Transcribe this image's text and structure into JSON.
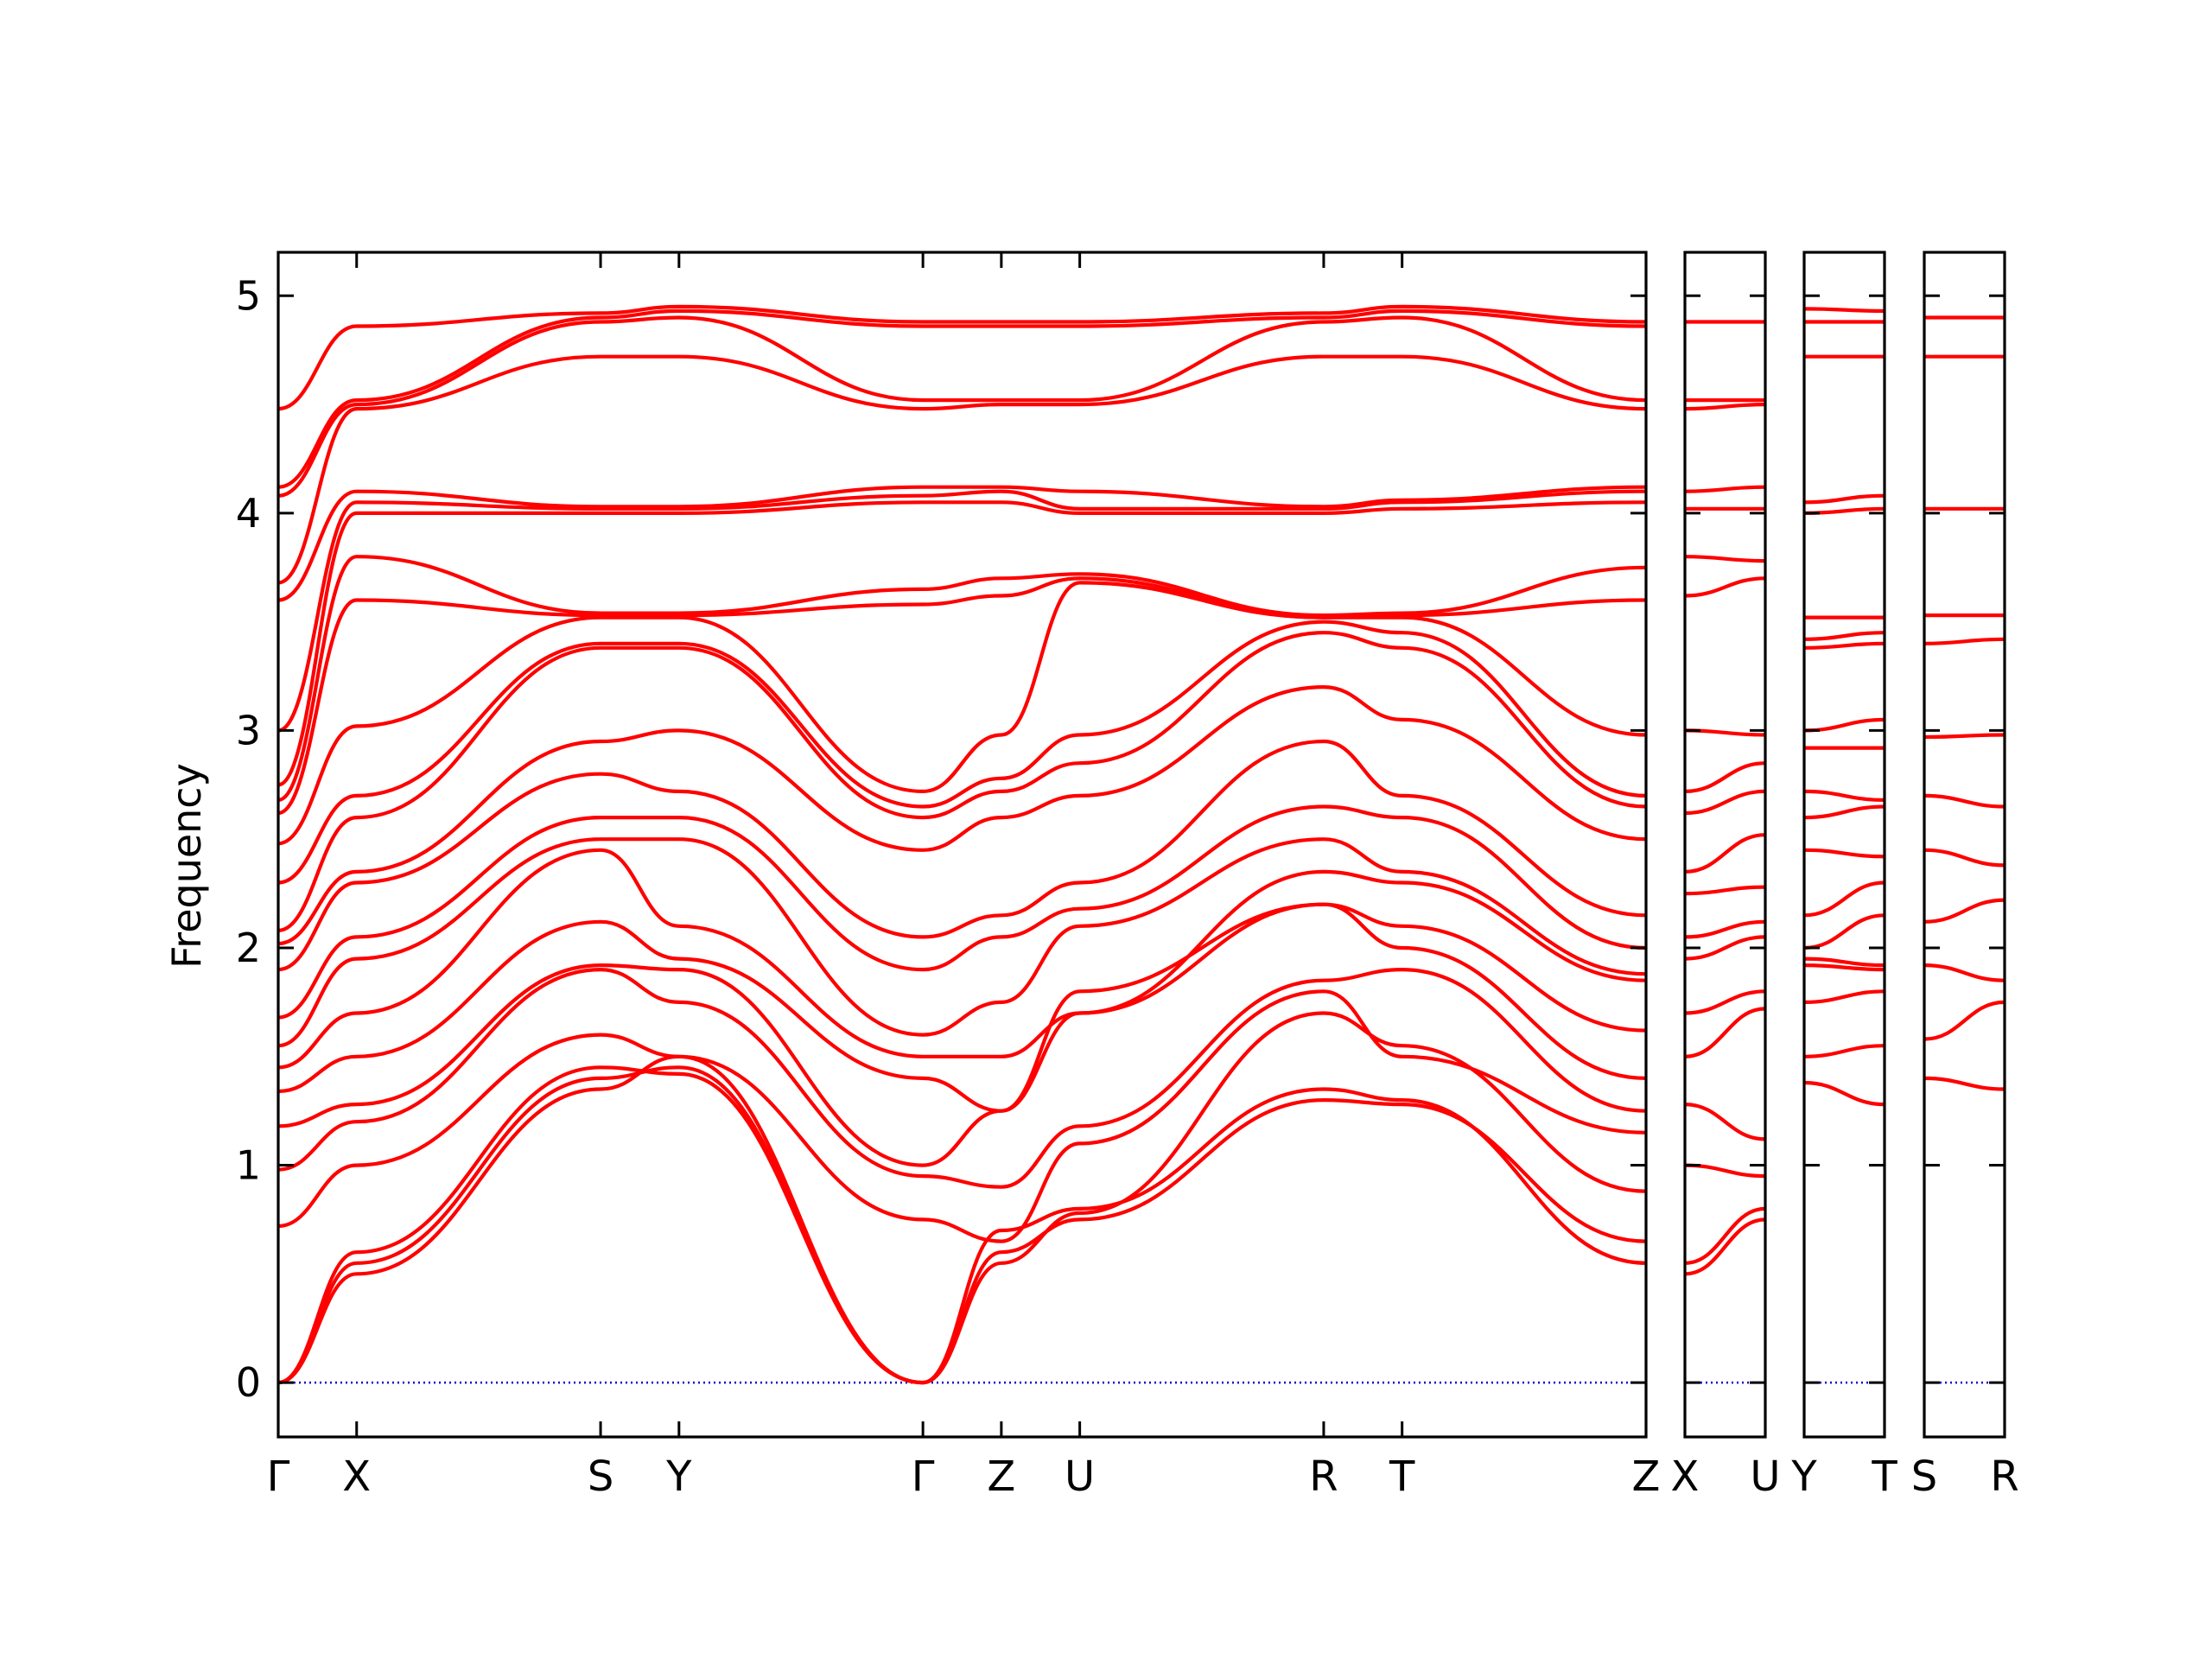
{
  "chart_data": {
    "type": "line",
    "title": "",
    "xlabel": "",
    "ylabel": "Frequency",
    "ylim": [
      -0.25,
      5.2
    ],
    "grid": false,
    "legend": "none",
    "line_color": "#ff0000",
    "zero_line_color": "#0000cc",
    "yticks": [
      0,
      1,
      2,
      3,
      4,
      5
    ],
    "yticks_labels": [
      "0",
      "1",
      "2",
      "3",
      "4",
      "5"
    ],
    "panels": [
      {
        "id": "main",
        "labels": [
          "Γ",
          "X",
          "S",
          "Y",
          "Γ",
          "Z",
          "U",
          "R",
          "T",
          "Z"
        ],
        "segment_lengths": [
          0.18,
          0.56,
          0.18,
          0.56,
          0.18,
          0.18,
          0.56,
          0.18,
          0.56
        ],
        "bands": [
          {
            "name": "",
            "values": [
              0,
              0.5,
              1.35,
              1.5,
              0,
              0.7,
              0.8,
              1.35,
              1.3,
              0.55
            ]
          },
          {
            "name": "",
            "values": [
              0,
              0.55,
              1.4,
              1.45,
              0,
              0.6,
              0.75,
              1.3,
              1.28,
              0.65
            ]
          },
          {
            "name": "",
            "values": [
              0,
              0.6,
              1.45,
              1.42,
              0,
              0.55,
              0.78,
              1.7,
              1.55,
              0.88
            ]
          },
          {
            "name": "",
            "values": [
              0.72,
              1.0,
              1.6,
              1.5,
              0.75,
              0.65,
              1.1,
              1.8,
              1.5,
              1.15
            ]
          },
          {
            "name": "",
            "values": [
              0.98,
              1.2,
              1.9,
              1.75,
              0.95,
              0.9,
              1.18,
              1.85,
              1.9,
              1.25
            ]
          },
          {
            "name": "",
            "values": [
              1.18,
              1.28,
              1.92,
              1.9,
              1.0,
              1.25,
              1.7,
              2.2,
              2.0,
              1.4
            ]
          },
          {
            "name": "",
            "values": [
              1.34,
              1.5,
              2.12,
              1.95,
              1.4,
              1.25,
              1.8,
              2.2,
              2.1,
              1.62
            ]
          },
          {
            "name": "",
            "values": [
              1.45,
              1.7,
              2.45,
              2.1,
              1.5,
              1.5,
              1.7,
              2.35,
              2.3,
              1.85
            ]
          },
          {
            "name": "",
            "values": [
              1.55,
              1.95,
              2.5,
              2.5,
              1.6,
              1.75,
              2.1,
              2.5,
              2.35,
              1.88
            ]
          },
          {
            "name": "",
            "values": [
              1.68,
              2.05,
              2.6,
              2.6,
              1.9,
              2.05,
              2.18,
              2.65,
              2.6,
              2.0
            ]
          },
          {
            "name": "",
            "values": [
              1.9,
              2.3,
              2.8,
              2.72,
              2.05,
              2.15,
              2.3,
              2.95,
              2.7,
              2.15
            ]
          },
          {
            "name": "",
            "values": [
              2.02,
              2.35,
              2.95,
              3.0,
              2.45,
              2.6,
              2.7,
              3.2,
              3.05,
              2.5
            ]
          },
          {
            "name": "",
            "values": [
              2.08,
              2.6,
              3.38,
              3.38,
              2.6,
              2.72,
              2.85,
              3.45,
              3.38,
              2.65
            ]
          },
          {
            "name": "",
            "values": [
              2.3,
              2.7,
              3.4,
              3.4,
              2.65,
              2.78,
              2.98,
              3.5,
              3.45,
              2.7
            ]
          },
          {
            "name": "",
            "values": [
              2.48,
              3.02,
              3.52,
              3.52,
              2.72,
              2.98,
              3.68,
              3.52,
              3.52,
              2.98
            ]
          },
          {
            "name": "",
            "values": [
              2.62,
              3.6,
              3.53,
              3.53,
              3.58,
              3.62,
              3.7,
              3.52,
              3.53,
              3.6
            ]
          },
          {
            "name": "",
            "values": [
              2.68,
              3.8,
              3.54,
              3.54,
              3.65,
              3.7,
              3.72,
              3.53,
              3.54,
              3.75
            ]
          },
          {
            "name": "",
            "values": [
              2.75,
              4.0,
              4.0,
              4.0,
              4.05,
              4.05,
              4.0,
              4.0,
              4.02,
              4.05
            ]
          },
          {
            "name": "",
            "values": [
              3.0,
              4.05,
              4.02,
              4.02,
              4.08,
              4.1,
              4.02,
              4.02,
              4.05,
              4.1
            ]
          },
          {
            "name": "",
            "values": [
              3.6,
              4.1,
              4.03,
              4.03,
              4.12,
              4.12,
              4.1,
              4.03,
              4.06,
              4.12
            ]
          },
          {
            "name": "",
            "values": [
              3.68,
              4.48,
              4.72,
              4.72,
              4.48,
              4.5,
              4.5,
              4.72,
              4.72,
              4.48
            ]
          },
          {
            "name": "",
            "values": [
              4.08,
              4.5,
              4.88,
              4.9,
              4.52,
              4.52,
              4.52,
              4.88,
              4.9,
              4.52
            ]
          },
          {
            "name": "",
            "values": [
              4.12,
              4.52,
              4.9,
              4.93,
              4.86,
              4.86,
              4.86,
              4.9,
              4.93,
              4.86
            ]
          },
          {
            "name": "",
            "values": [
              4.48,
              4.86,
              4.92,
              4.95,
              4.88,
              4.88,
              4.88,
              4.92,
              4.95,
              4.88
            ]
          }
        ]
      },
      {
        "id": "xu",
        "labels": [
          "X",
          "U"
        ],
        "segment_lengths": [
          1
        ],
        "bands": [
          {
            "name": "",
            "values": [
              0.5,
              0.75
            ]
          },
          {
            "name": "",
            "values": [
              0.55,
              0.8
            ]
          },
          {
            "name": "",
            "values": [
              1.0,
              0.95
            ]
          },
          {
            "name": "",
            "values": [
              1.28,
              1.12
            ]
          },
          {
            "name": "",
            "values": [
              1.5,
              1.72
            ]
          },
          {
            "name": "",
            "values": [
              1.7,
              1.8
            ]
          },
          {
            "name": "",
            "values": [
              1.95,
              2.05
            ]
          },
          {
            "name": "",
            "values": [
              2.05,
              2.12
            ]
          },
          {
            "name": "",
            "values": [
              2.25,
              2.28
            ]
          },
          {
            "name": "",
            "values": [
              2.35,
              2.52
            ]
          },
          {
            "name": "",
            "values": [
              2.62,
              2.72
            ]
          },
          {
            "name": "",
            "values": [
              2.72,
              2.85
            ]
          },
          {
            "name": "",
            "values": [
              3.0,
              2.98
            ]
          },
          {
            "name": "",
            "values": [
              3.62,
              3.7
            ]
          },
          {
            "name": "",
            "values": [
              3.8,
              3.78
            ]
          },
          {
            "name": "",
            "values": [
              4.02,
              4.02
            ]
          },
          {
            "name": "",
            "values": [
              4.1,
              4.12
            ]
          },
          {
            "name": "",
            "values": [
              4.48,
              4.5
            ]
          },
          {
            "name": "",
            "values": [
              4.52,
              4.52
            ]
          },
          {
            "name": "",
            "values": [
              4.88,
              4.88
            ]
          }
        ]
      },
      {
        "id": "yt",
        "labels": [
          "Y",
          "T"
        ],
        "segment_lengths": [
          1
        ],
        "bands": [
          {
            "name": "",
            "values": [
              1.38,
              1.28
            ]
          },
          {
            "name": "",
            "values": [
              1.5,
              1.55
            ]
          },
          {
            "name": "",
            "values": [
              1.75,
              1.8
            ]
          },
          {
            "name": "",
            "values": [
              1.92,
              1.9
            ]
          },
          {
            "name": "",
            "values": [
              1.95,
              1.92
            ]
          },
          {
            "name": "",
            "values": [
              2.0,
              2.15
            ]
          },
          {
            "name": "",
            "values": [
              2.15,
              2.3
            ]
          },
          {
            "name": "",
            "values": [
              2.45,
              2.42
            ]
          },
          {
            "name": "",
            "values": [
              2.6,
              2.65
            ]
          },
          {
            "name": "",
            "values": [
              2.72,
              2.68
            ]
          },
          {
            "name": "",
            "values": [
              2.92,
              2.92
            ]
          },
          {
            "name": "",
            "values": [
              3.0,
              3.05
            ]
          },
          {
            "name": "",
            "values": [
              3.38,
              3.4
            ]
          },
          {
            "name": "",
            "values": [
              3.42,
              3.45
            ]
          },
          {
            "name": "",
            "values": [
              3.52,
              3.52
            ]
          },
          {
            "name": "",
            "values": [
              4.0,
              4.02
            ]
          },
          {
            "name": "",
            "values": [
              4.05,
              4.08
            ]
          },
          {
            "name": "",
            "values": [
              4.72,
              4.72
            ]
          },
          {
            "name": "",
            "values": [
              4.88,
              4.88
            ]
          },
          {
            "name": "",
            "values": [
              4.94,
              4.93
            ]
          }
        ]
      },
      {
        "id": "sr",
        "labels": [
          "S",
          "R"
        ],
        "segment_lengths": [
          1
        ],
        "bands": [
          {
            "name": "",
            "values": [
              1.4,
              1.35
            ]
          },
          {
            "name": "",
            "values": [
              1.58,
              1.75
            ]
          },
          {
            "name": "",
            "values": [
              1.92,
              1.85
            ]
          },
          {
            "name": "",
            "values": [
              2.12,
              2.22
            ]
          },
          {
            "name": "",
            "values": [
              2.45,
              2.38
            ]
          },
          {
            "name": "",
            "values": [
              2.7,
              2.65
            ]
          },
          {
            "name": "",
            "values": [
              2.97,
              2.98
            ]
          },
          {
            "name": "",
            "values": [
              3.4,
              3.42
            ]
          },
          {
            "name": "",
            "values": [
              3.53,
              3.53
            ]
          },
          {
            "name": "",
            "values": [
              4.02,
              4.02
            ]
          },
          {
            "name": "",
            "values": [
              4.72,
              4.72
            ]
          },
          {
            "name": "",
            "values": [
              4.9,
              4.9
            ]
          }
        ]
      }
    ]
  }
}
